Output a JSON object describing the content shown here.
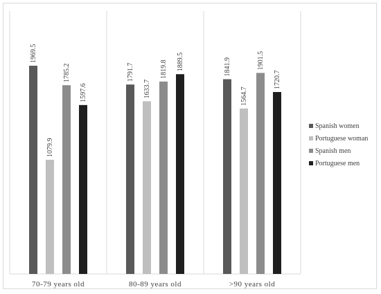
{
  "chart_data": {
    "type": "bar",
    "title": "",
    "xlabel": "",
    "ylabel": "",
    "ylim": [
      0,
      2100
    ],
    "categories": [
      "70-79 years old",
      "80-89 years old",
      ">90 years old"
    ],
    "series": [
      {
        "name": "Spanish women",
        "color": "#595959",
        "values": [
          1969.5,
          1791.7,
          1841.9
        ],
        "labels": [
          "1969.5",
          "1791.7",
          "1841.9"
        ]
      },
      {
        "name": "Portuguese woman",
        "color": "#bfbfbf",
        "values": [
          1079.9,
          1633.7,
          1564.7
        ],
        "labels": [
          "1079.9",
          "1633.7",
          "1564.7"
        ]
      },
      {
        "name": "Spanish men",
        "color": "#8c8c8c",
        "values": [
          1785.2,
          1819.8,
          1901.5
        ],
        "labels": [
          "1785.2",
          "1819.8",
          "1901.5"
        ]
      },
      {
        "name": "Portuguese men",
        "color": "#1f1f1f",
        "values": [
          1597.6,
          1889.5,
          1720.7
        ],
        "labels": [
          "1597.6",
          "1889.5",
          "1720.7"
        ]
      }
    ],
    "legend_position": "right",
    "grid": "vertical category separators"
  }
}
